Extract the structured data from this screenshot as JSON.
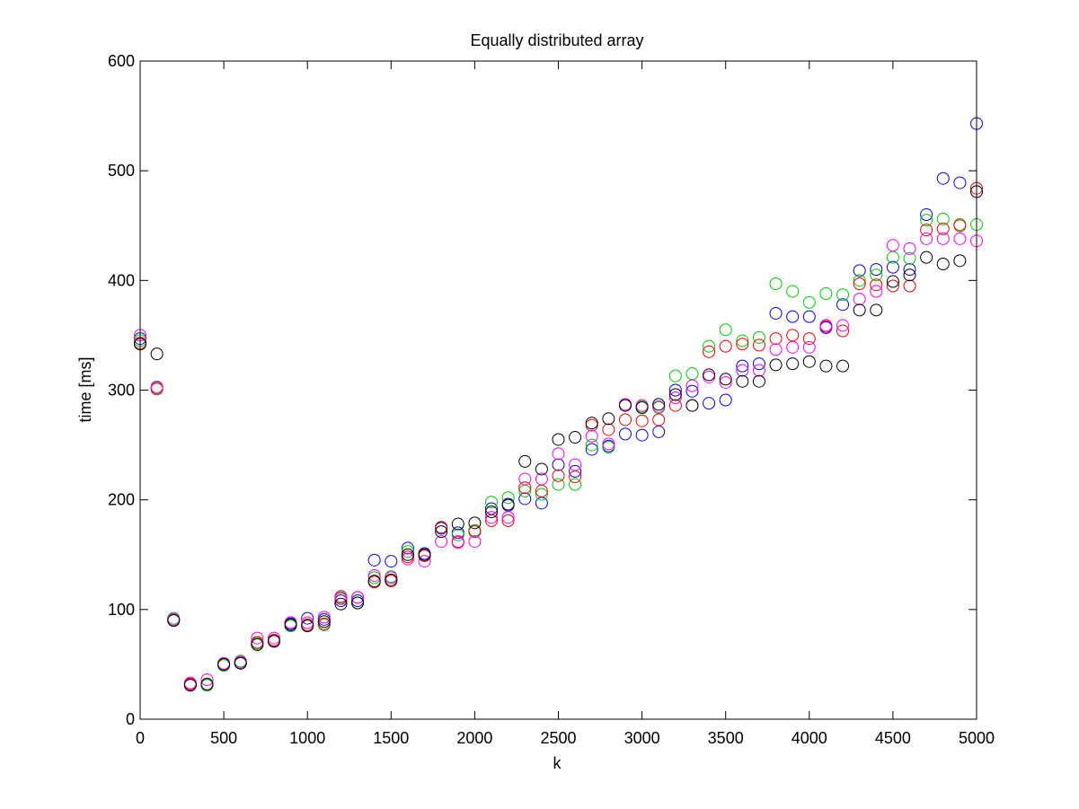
{
  "chart_data": {
    "type": "scatter",
    "title": "Equally distributed array",
    "xlabel": "k",
    "ylabel": "time [ms]",
    "xlim": [
      0,
      5000
    ],
    "ylim": [
      0,
      600
    ],
    "xticks": [
      0,
      500,
      1000,
      1500,
      2000,
      2500,
      3000,
      3500,
      4000,
      4500,
      5000
    ],
    "yticks": [
      0,
      100,
      200,
      300,
      400,
      500,
      600
    ],
    "grid": false,
    "legend": "none",
    "marker": "circle-open",
    "x": [
      0,
      100,
      200,
      300,
      400,
      500,
      600,
      700,
      800,
      900,
      1000,
      1100,
      1200,
      1300,
      1400,
      1500,
      1600,
      1700,
      1800,
      1900,
      2000,
      2100,
      2200,
      2300,
      2400,
      2500,
      2600,
      2700,
      2800,
      2900,
      3000,
      3100,
      3200,
      3300,
      3400,
      3500,
      3600,
      3700,
      3800,
      3900,
      4000,
      4100,
      4200,
      4300,
      4400,
      4500,
      4600,
      4700,
      4800,
      4900,
      5000
    ],
    "series": [
      {
        "color": "#0000ff",
        "values": [
          347,
          302,
          90,
          32,
          31,
          50,
          51,
          70,
          72,
          87,
          92,
          91,
          108,
          108,
          145,
          144,
          156,
          151,
          174,
          170,
          172,
          192,
          195,
          201,
          197,
          232,
          226,
          246,
          249,
          260,
          259,
          262,
          300,
          299,
          288,
          291,
          322,
          324,
          370,
          367,
          367,
          357,
          378,
          409,
          410,
          412,
          410,
          460,
          493,
          489,
          543
        ]
      },
      {
        "color": "#00cc00",
        "values": [
          345,
          302,
          92,
          32,
          31,
          49,
          53,
          69,
          71,
          85,
          86,
          86,
          111,
          106,
          129,
          130,
          153,
          149,
          175,
          168,
          172,
          198,
          202,
          208,
          205,
          214,
          214,
          250,
          248,
          287,
          285,
          284,
          313,
          315,
          340,
          355,
          345,
          348,
          397,
          390,
          380,
          388,
          387,
          400,
          405,
          421,
          420,
          455,
          456,
          451,
          451
        ]
      },
      {
        "color": "#ff0000",
        "values": [
          343,
          301,
          91,
          32,
          32,
          50,
          52,
          70,
          72,
          88,
          86,
          87,
          110,
          111,
          125,
          126,
          148,
          149,
          175,
          162,
          171,
          181,
          181,
          211,
          208,
          222,
          221,
          268,
          264,
          273,
          272,
          273,
          286,
          286,
          335,
          340,
          342,
          341,
          347,
          350,
          347,
          358,
          354,
          397,
          396,
          395,
          395,
          446,
          447,
          450,
          484
        ]
      },
      {
        "color": "#ff00ff",
        "values": [
          350,
          303,
          91,
          33,
          36,
          51,
          52,
          74,
          74,
          88,
          88,
          93,
          112,
          111,
          131,
          129,
          146,
          144,
          162,
          161,
          162,
          184,
          184,
          219,
          219,
          242,
          232,
          258,
          251,
          287,
          286,
          285,
          293,
          304,
          312,
          307,
          318,
          318,
          337,
          339,
          339,
          359,
          359,
          383,
          390,
          432,
          429,
          438,
          438,
          438,
          436
        ]
      },
      {
        "color": "#000000",
        "values": [
          342,
          333,
          90,
          31,
          32,
          50,
          51,
          68,
          71,
          86,
          85,
          89,
          105,
          106,
          126,
          127,
          150,
          150,
          171,
          178,
          179,
          189,
          196,
          235,
          228,
          255,
          257,
          270,
          274,
          286,
          284,
          287,
          296,
          286,
          314,
          310,
          308,
          308,
          323,
          324,
          326,
          322,
          322,
          373,
          373,
          399,
          405,
          421,
          415,
          418,
          481
        ]
      }
    ]
  }
}
